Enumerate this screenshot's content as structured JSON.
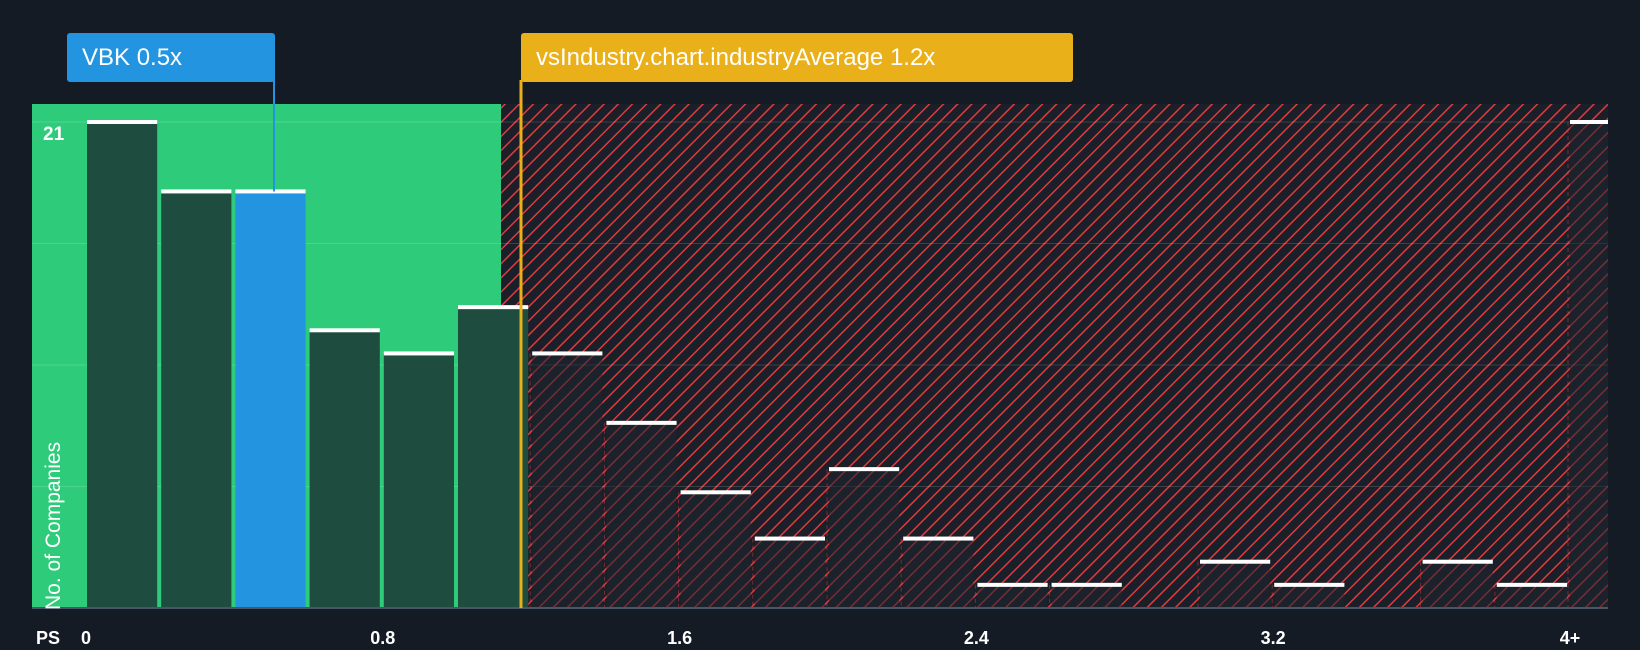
{
  "company_label": "VBK 0.5x",
  "industry_label": "vsIndustry.chart.industryAverage 1.2x",
  "colors": {
    "company": "#2394df",
    "industry": "#eab01a",
    "undervalued_bg": "#2ecc7a",
    "overvalued_hatch": "#e03b3b",
    "bar_dark": "#1e4d40",
    "background": "#151b24"
  },
  "chart_data": {
    "type": "bar",
    "title": "",
    "xlabel": "PS",
    "ylabel": "No. of Companies",
    "y_max_tick": "21",
    "ylim": [
      0,
      21
    ],
    "x_ticks": [
      "0",
      "0.8",
      "1.6",
      "2.4",
      "3.2",
      "4+"
    ],
    "bin_width": 0.2,
    "bins_start": [
      0,
      0.2,
      0.4,
      0.6,
      0.8,
      1.0,
      1.2,
      1.4,
      1.6,
      1.8,
      2.0,
      2.2,
      2.4,
      2.6,
      2.8,
      3.0,
      3.2,
      3.4,
      3.6,
      3.8,
      4.0
    ],
    "values": [
      21,
      18,
      18,
      12,
      11,
      13,
      11,
      8,
      5,
      3,
      6,
      3,
      1,
      1,
      0,
      2,
      1,
      0,
      2,
      1,
      21
    ],
    "company_value": 0.5,
    "industry_average": 1.2,
    "company_bin_index": 2
  }
}
